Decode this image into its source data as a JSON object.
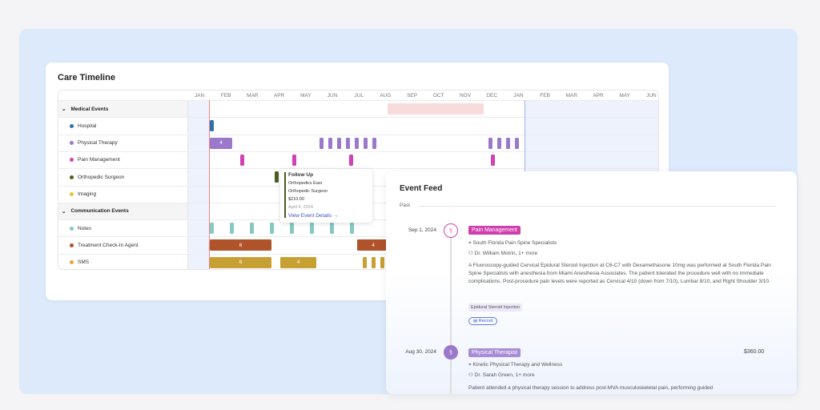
{
  "timeline": {
    "title": "Care Timeline",
    "months": [
      "JAN",
      "FEB",
      "MAR",
      "APR",
      "MAY",
      "JUN",
      "JUL",
      "AUG",
      "SEP",
      "OCT",
      "NOV",
      "DEC",
      "JAN",
      "FEB",
      "MAR",
      "APR",
      "MAY",
      "JUN"
    ],
    "groups": {
      "medical": "Medical Events",
      "communication": "Communication Events"
    },
    "rows": [
      {
        "label": "Hospital",
        "color": "#2f6fad"
      },
      {
        "label": "Physical Therapy",
        "color": "#9b78c9"
      },
      {
        "label": "Pain Management",
        "color": "#d043b4"
      },
      {
        "label": "Orthopedic Surgeon",
        "color": "#4b5e22"
      },
      {
        "label": "Imaging",
        "color": "#e8c23a"
      },
      {
        "label": "Notes",
        "color": "#86c9c3"
      },
      {
        "label": "Treatment Check-In Agent",
        "color": "#b0522a"
      },
      {
        "label": "SMS",
        "color": "#f0a23c"
      }
    ],
    "counts": {
      "pt_first": "4",
      "tca_first": "6",
      "tca_second": "4",
      "sms_first": "6",
      "sms_second": "4"
    }
  },
  "tooltip": {
    "title": "Follow Up",
    "location": "Orthopedics East",
    "specialty": "Orthopedic Surgeon",
    "price": "$210.00",
    "date": "April 4, 2024",
    "link": "View Event Details"
  },
  "feed": {
    "title": "Event Feed",
    "section": "Past",
    "events": [
      {
        "date": "Sep 1, 2024",
        "tag": "Pain Management",
        "location": "South Florida Pain Spine Specialists",
        "provider": "Dr. William Motrin, 1+ more",
        "description": "A Fluoroscopy-guided Cervical Epidural Steroid Injection at C6-C7 with Dexamethasone 10mg was performed at South Florida Pain Spine Specialists with anesthesia from Miami Anesthesia Associates. The patient tolerated the procedure well with no immediate complications. Post-procedure pain levels were reported as Cervical 4/10 (down from 7/10), Lumbar 8/10, and Right Shoulder 3/10.",
        "chip": "Epidural Steroid Injection",
        "record": "Record"
      },
      {
        "date": "Aug 30, 2024",
        "tag": "Physical Therapist",
        "price": "$360.00",
        "location": "Kinetic Physical Therapy and Wellness",
        "provider": "Dr. Sarah Green, 1+ more",
        "description": "Patient attended a physical therapy session to address post-MVA musculoskeletal pain, performing guided"
      }
    ]
  }
}
